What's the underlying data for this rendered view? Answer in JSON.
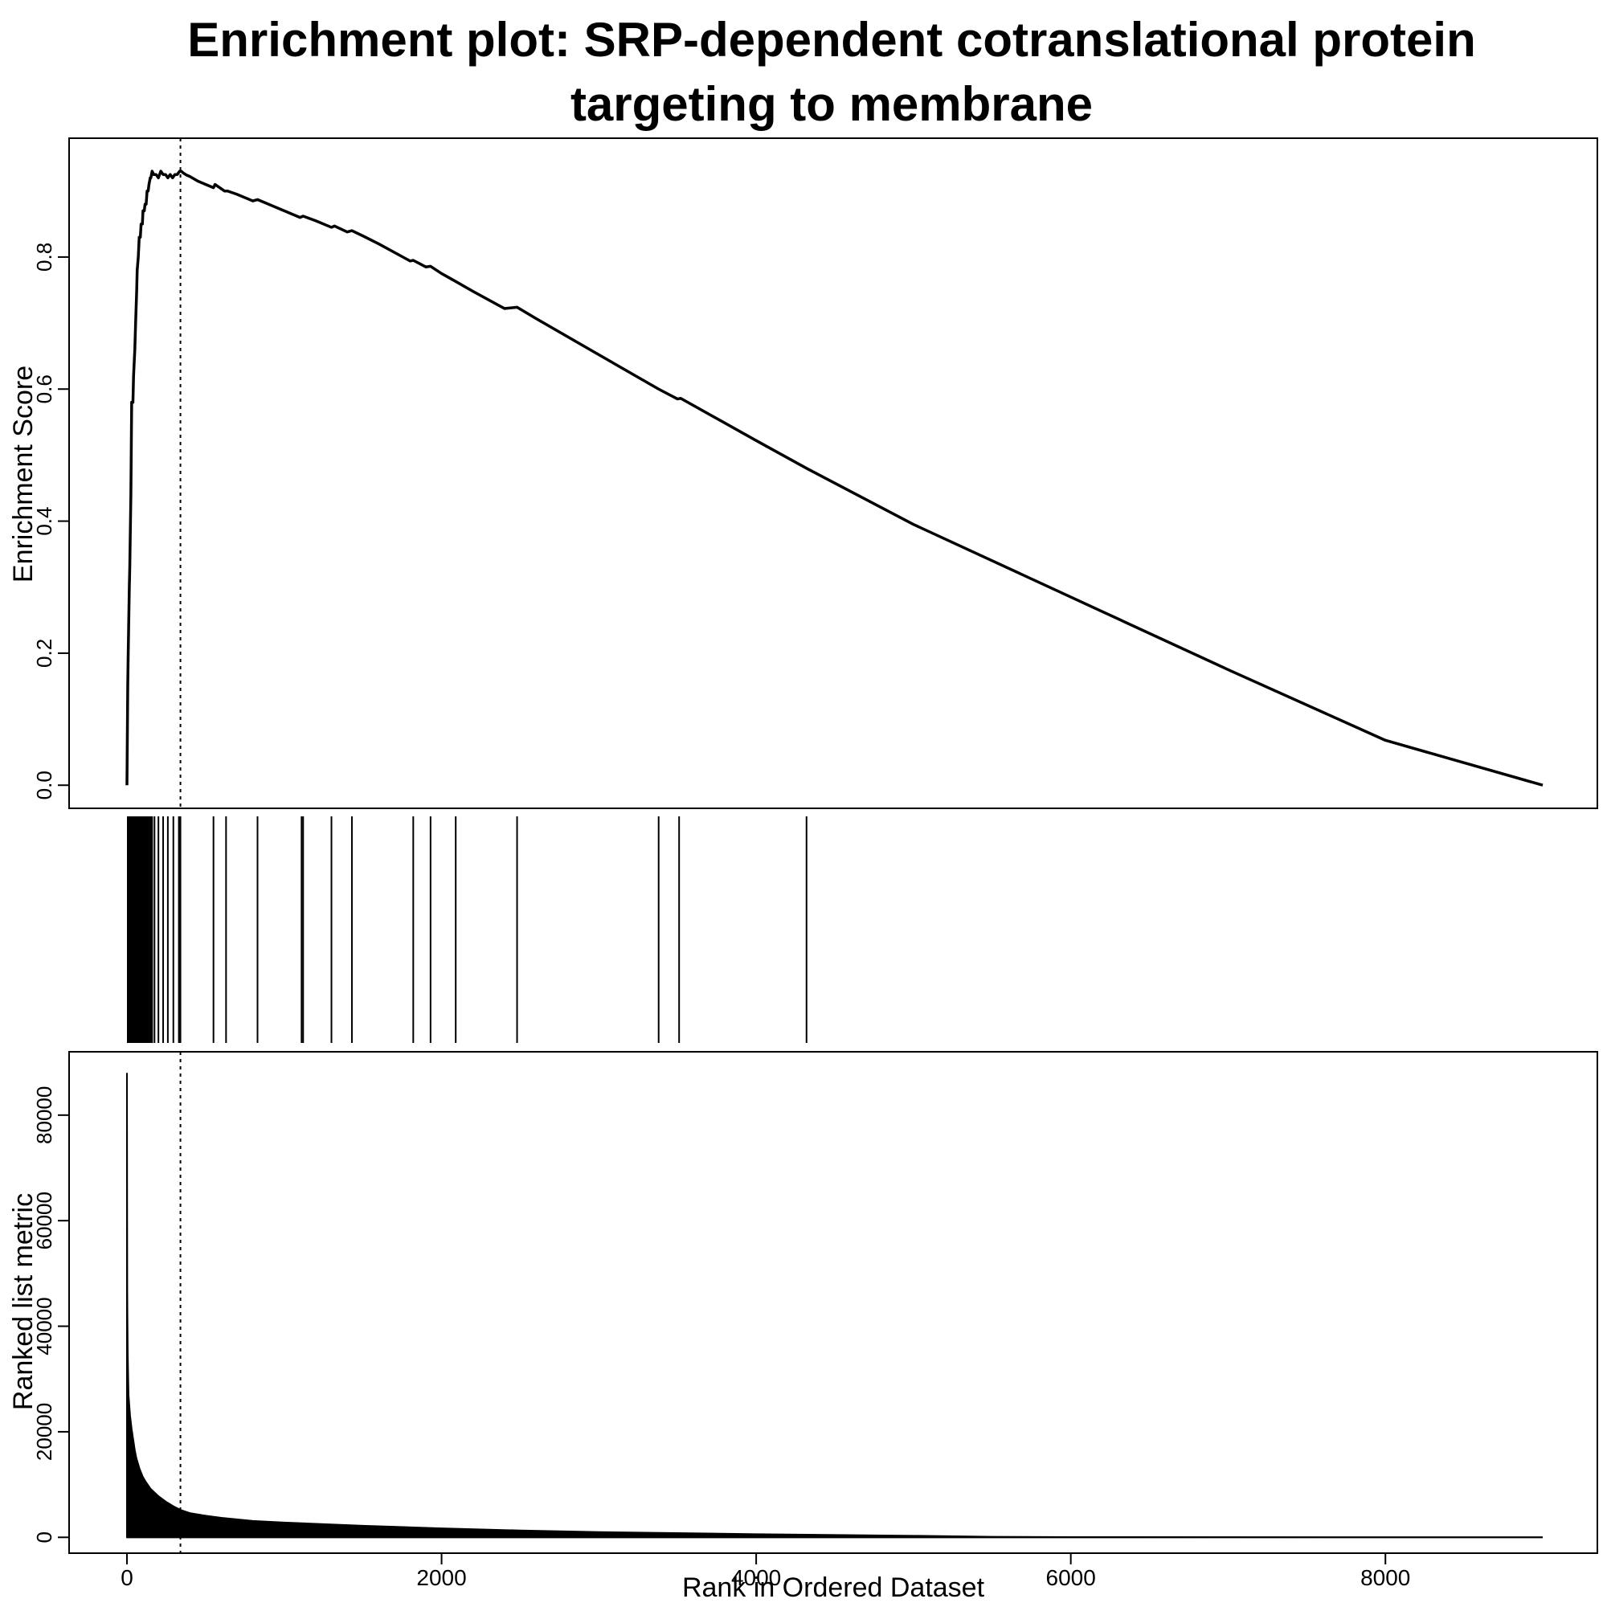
{
  "chart_data": {
    "type": "line",
    "title_line1": "Enrichment plot: SRP-dependent cotranslational protein",
    "title_line2": "targeting to membrane",
    "xlabel": "Rank in Ordered Dataset",
    "xlim": [
      0,
      9000
    ],
    "x_ticks": [
      0,
      2000,
      4000,
      6000,
      8000
    ],
    "leading_edge_rank": 340,
    "line_color": "#000000",
    "panels": [
      {
        "name": "enrichment-score",
        "ylabel": "Enrichment Score",
        "ylim": [
          -0.035,
          0.98
        ],
        "y_ticks": [
          0.0,
          0.2,
          0.4,
          0.6,
          0.8
        ],
        "y_tick_labels": [
          "0.0",
          "0.2",
          "0.4",
          "0.6",
          "0.8"
        ],
        "series": [
          {
            "x": [
              0,
              5,
              8,
              15,
              18,
              25,
              30,
              38,
              42,
              50,
              55,
              62,
              65,
              72,
              78,
              85,
              90,
              98,
              102,
              110,
              115,
              122,
              128,
              135,
              140,
              148,
              152,
              160,
              170,
              185,
              200,
              215,
              230,
              245,
              260,
              275,
              290,
              305,
              320,
              335,
              345,
              360,
              380,
              400,
              450,
              500,
              550,
              560,
              620,
              640,
              700,
              800,
              830,
              900,
              1000,
              1100,
              1120,
              1200,
              1300,
              1320,
              1400,
              1430,
              1500,
              1600,
              1700,
              1800,
              1820,
              1900,
              1930,
              2000,
              2090,
              2200,
              2400,
              2480,
              2600,
              3000,
              3380,
              3500,
              3520,
              4000,
              4320,
              5000,
              6000,
              7000,
              8000,
              9000
            ],
            "y": [
              0.0,
              0.15,
              0.2,
              0.3,
              0.33,
              0.44,
              0.58,
              0.58,
              0.62,
              0.66,
              0.7,
              0.75,
              0.78,
              0.8,
              0.83,
              0.83,
              0.85,
              0.85,
              0.87,
              0.87,
              0.88,
              0.88,
              0.9,
              0.9,
              0.91,
              0.92,
              0.92,
              0.93,
              0.925,
              0.925,
              0.92,
              0.93,
              0.925,
              0.925,
              0.92,
              0.925,
              0.92,
              0.925,
              0.925,
              0.93,
              0.93,
              0.927,
              0.924,
              0.922,
              0.915,
              0.91,
              0.905,
              0.91,
              0.9,
              0.9,
              0.895,
              0.885,
              0.887,
              0.88,
              0.87,
              0.86,
              0.862,
              0.855,
              0.845,
              0.847,
              0.838,
              0.84,
              0.832,
              0.82,
              0.807,
              0.794,
              0.795,
              0.785,
              0.786,
              0.775,
              0.763,
              0.748,
              0.722,
              0.724,
              0.707,
              0.652,
              0.6,
              0.585,
              0.586,
              0.522,
              0.48,
              0.395,
              0.285,
              0.175,
              0.068,
              0.0
            ]
          }
        ]
      },
      {
        "name": "hits",
        "hit_ranks": [
          5,
          8,
          12,
          15,
          18,
          22,
          25,
          28,
          30,
          33,
          36,
          38,
          42,
          45,
          48,
          50,
          53,
          55,
          58,
          62,
          65,
          68,
          72,
          75,
          78,
          82,
          85,
          88,
          90,
          95,
          98,
          102,
          105,
          110,
          115,
          118,
          122,
          128,
          135,
          140,
          148,
          152,
          160,
          175,
          200,
          230,
          260,
          295,
          330,
          340,
          550,
          630,
          830,
          1110,
          1120,
          1300,
          1430,
          1820,
          1930,
          2090,
          2480,
          3380,
          3510,
          4320
        ]
      },
      {
        "name": "ranked-metric",
        "ylabel": "Ranked list metric",
        "ylim": [
          -3000,
          92000
        ],
        "y_ticks": [
          0,
          20000,
          40000,
          60000,
          80000
        ],
        "y_tick_labels": [
          "0",
          "20000",
          "40000",
          "60000",
          "80000"
        ],
        "series": [
          {
            "x": [
              0,
              2,
              3,
              5,
              8,
              10,
              15,
              20,
              30,
              40,
              50,
              60,
              80,
              100,
              120,
              150,
              200,
              250,
              300,
              340,
              400,
              500,
              600,
              800,
              1000,
              1500,
              2000,
              2500,
              3000,
              4000,
              5000,
              5500,
              6000,
              7000,
              8000,
              9000
            ],
            "y": [
              88000,
              47000,
              42000,
              35000,
              30000,
              27000,
              25000,
              23000,
              20500,
              18500,
              16500,
              15000,
              13000,
              11500,
              10500,
              9200,
              7800,
              6700,
              5800,
              5200,
              4600,
              4100,
              3700,
              3100,
              2800,
              2200,
              1700,
              1300,
              1000,
              600,
              300,
              100,
              50,
              20,
              10,
              0
            ]
          }
        ]
      }
    ]
  }
}
